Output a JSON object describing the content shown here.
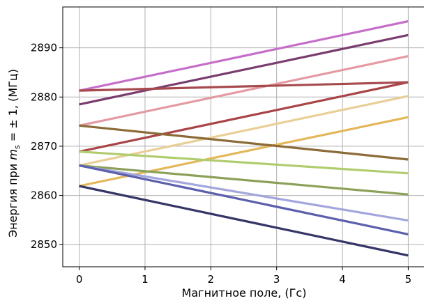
{
  "chart_data": {
    "type": "line",
    "xlabel": "Магнитное поле, (Гс)",
    "ylabel_prefix": "Энергия при ",
    "ylabel_math": "m",
    "ylabel_sub": "s",
    "ylabel_suffix": " = ± 1, (МГц)",
    "xlim": [
      -0.25,
      5.25
    ],
    "ylim": [
      2845.5,
      2898.3
    ],
    "x_ticks": [
      0,
      1,
      2,
      3,
      4,
      5
    ],
    "y_ticks": [
      2850,
      2860,
      2870,
      2880,
      2890
    ],
    "x_tick_labels": [
      "0",
      "1",
      "2",
      "3",
      "4",
      "5"
    ],
    "y_tick_labels": [
      "2850",
      "2860",
      "2870",
      "2880",
      "2890"
    ],
    "grid": true,
    "series": [
      {
        "color": "#c66fc9",
        "x": [
          0,
          5
        ],
        "y": [
          2881.3,
          2895.4
        ]
      },
      {
        "color": "#7a3d6f",
        "x": [
          0,
          5
        ],
        "y": [
          2878.5,
          2892.6
        ]
      },
      {
        "color": "#e39aa2",
        "x": [
          0,
          5
        ],
        "y": [
          2874.2,
          2888.3
        ]
      },
      {
        "color": "#a94447",
        "x": [
          0,
          5
        ],
        "y": [
          2868.9,
          2883.0
        ]
      },
      {
        "color": "#e8cf96",
        "x": [
          0,
          5
        ],
        "y": [
          2866.1,
          2880.2
        ]
      },
      {
        "color": "#e4b75a",
        "x": [
          0,
          5
        ],
        "y": [
          2861.9,
          2875.9
        ]
      },
      {
        "color": "#b1cc6e",
        "x": [
          0,
          5
        ],
        "y": [
          2868.9,
          2864.5
        ]
      },
      {
        "color": "#8ba159",
        "x": [
          0,
          5
        ],
        "y": [
          2866.1,
          2860.2
        ]
      },
      {
        "color": "#8b6b38",
        "x": [
          0,
          5
        ],
        "y": [
          2874.2,
          2867.3
        ]
      },
      {
        "color": "#a74a4e",
        "x": [
          0,
          5
        ],
        "y": [
          2881.3,
          2883.0
        ]
      },
      {
        "color": "#a3a6dc",
        "x": [
          0,
          5
        ],
        "y": [
          2866.1,
          2854.9
        ]
      },
      {
        "color": "#5c5fab",
        "x": [
          0,
          5
        ],
        "y": [
          2866.1,
          2852.1
        ]
      },
      {
        "color": "#353567",
        "x": [
          0,
          5
        ],
        "y": [
          2861.9,
          2847.8
        ]
      }
    ]
  }
}
